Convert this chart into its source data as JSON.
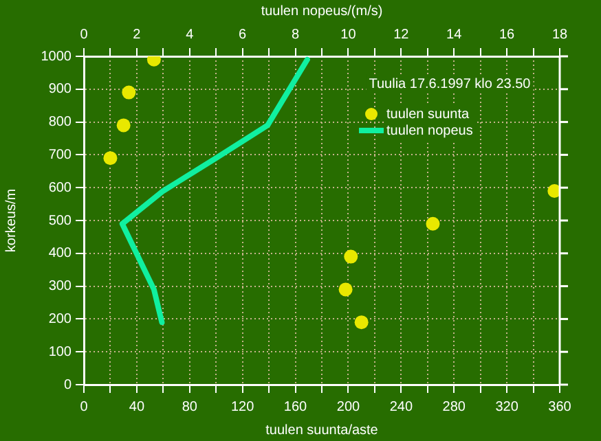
{
  "chart_data": {
    "type": "scatter",
    "xlabel": "tuulen suunta/aste",
    "ylabel": "korkeus/m",
    "x2label": "tuulen nopeus/(m/s)",
    "annotations": [
      "Tuulia 17.6.1997 klo 23.50"
    ],
    "series": [
      {
        "name": "tuulen suunta",
        "marker": "circle",
        "color": "#e8e800",
        "x": [
          53,
          34,
          30,
          20,
          356,
          264,
          202,
          198,
          210
        ],
        "values": [
          990,
          890,
          790,
          690,
          590,
          490,
          390,
          290,
          190
        ]
      },
      {
        "name": "tuulen nopeus",
        "type": "line",
        "marker": "none",
        "axis": "x2",
        "color": "#10f0a0",
        "x": [
          8.45,
          6.95,
          5.0,
          3.0,
          1.45,
          2.65,
          2.95
        ],
        "values": [
          990,
          790,
          690,
          590,
          490,
          290,
          190
        ]
      }
    ],
    "xlim": [
      0,
      360
    ],
    "xticks": [
      0,
      {
        "value": 20,
        "label": null
      },
      40,
      {
        "value": 60,
        "label": null
      },
      80,
      {
        "value": 100,
        "label": null
      },
      120,
      {
        "value": 140,
        "label": null
      },
      160,
      {
        "value": 180,
        "label": null
      },
      200,
      {
        "value": 220,
        "label": null
      },
      240,
      {
        "value": 260,
        "label": null
      },
      280,
      {
        "value": 300,
        "label": null
      },
      320,
      {
        "value": 340,
        "label": null
      },
      360
    ],
    "x2lim": [
      0,
      18
    ],
    "x2ticks": [
      0,
      {
        "value": 1,
        "label": null
      },
      2,
      {
        "value": 3,
        "label": null
      },
      4,
      {
        "value": 5,
        "label": null
      },
      6,
      {
        "value": 7,
        "label": null
      },
      8,
      {
        "value": 9,
        "label": null
      },
      10,
      {
        "value": 11,
        "label": null
      },
      12,
      {
        "value": 13,
        "label": null
      },
      14,
      {
        "value": 15,
        "label": null
      },
      16,
      {
        "value": 17,
        "label": null
      },
      18
    ],
    "ylim": [
      0,
      1000
    ],
    "yticks": [
      0,
      100,
      200,
      300,
      400,
      500,
      600,
      700,
      800,
      900,
      1000
    ],
    "grid": true,
    "legend": "top right",
    "line_style": "solid"
  }
}
